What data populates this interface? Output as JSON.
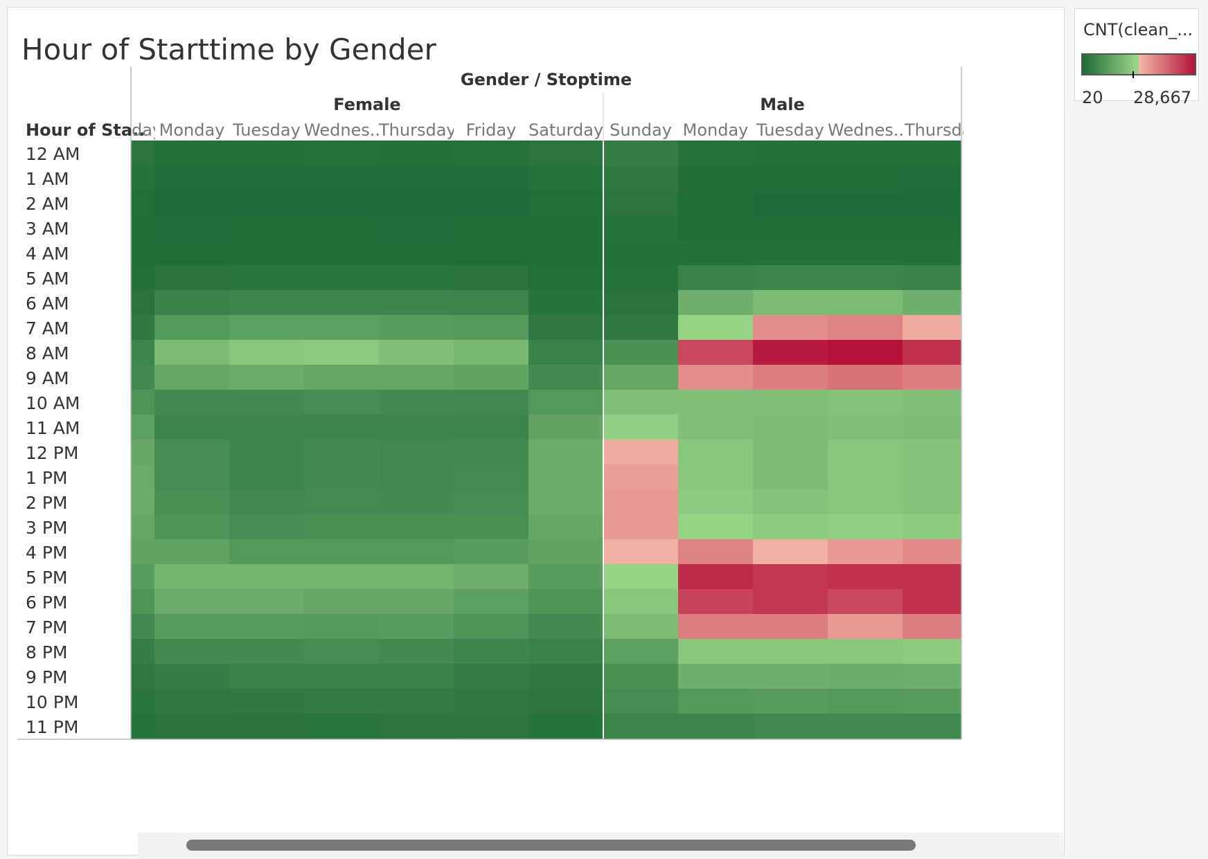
{
  "sheet": {
    "title": "Hour of Starttime by Gender"
  },
  "legend": {
    "title": "CNT(clean_...",
    "min_label": "20",
    "max_label": "28,667"
  },
  "chart_data": {
    "type": "heatmap",
    "title": "Hour of Starttime by Gender",
    "column_header": "Gender / Stoptime",
    "row_header": "Hour of Sta..",
    "genders": [
      "Female",
      "Male"
    ],
    "columns": [
      {
        "gender": "Female",
        "label": "..day"
      },
      {
        "gender": "Female",
        "label": "Monday"
      },
      {
        "gender": "Female",
        "label": "Tuesday"
      },
      {
        "gender": "Female",
        "label": "Wednes.."
      },
      {
        "gender": "Female",
        "label": "Thursday"
      },
      {
        "gender": "Female",
        "label": "Friday"
      },
      {
        "gender": "Female",
        "label": "Saturday"
      },
      {
        "gender": "Male",
        "label": "Sunday"
      },
      {
        "gender": "Male",
        "label": "Monday"
      },
      {
        "gender": "Male",
        "label": "Tuesday"
      },
      {
        "gender": "Male",
        "label": "Wednes.."
      },
      {
        "gender": "Male",
        "label": "Thursda"
      }
    ],
    "rows": [
      "12 AM",
      "1 AM",
      "2 AM",
      "3 AM",
      "4 AM",
      "5 AM",
      "6 AM",
      "7 AM",
      "8 AM",
      "9 AM",
      "10 AM",
      "11 AM",
      "12 PM",
      "1 PM",
      "2 PM",
      "3 PM",
      "4 PM",
      "5 PM",
      "6 PM",
      "7 PM",
      "8 PM",
      "9 PM",
      "10 PM",
      "11 PM"
    ],
    "color_range": [
      20,
      28667
    ],
    "colors": {
      "low": "#1e6b37",
      "mid_low": "#9ed98a",
      "mid_high": "#f2b9a6",
      "high": "#b5123a"
    },
    "values": [
      [
        1500,
        700,
        800,
        900,
        850,
        900,
        1500,
        2500,
        900,
        700,
        700,
        800
      ],
      [
        900,
        300,
        300,
        300,
        300,
        300,
        900,
        2000,
        400,
        350,
        350,
        300
      ],
      [
        600,
        200,
        200,
        200,
        200,
        200,
        600,
        1500,
        250,
        200,
        200,
        200
      ],
      [
        400,
        300,
        250,
        250,
        300,
        250,
        400,
        900,
        250,
        250,
        250,
        250
      ],
      [
        400,
        450,
        450,
        450,
        450,
        450,
        400,
        800,
        800,
        800,
        800,
        800
      ],
      [
        700,
        1200,
        1300,
        1300,
        1300,
        1200,
        600,
        900,
        3000,
        3500,
        3500,
        3000
      ],
      [
        1200,
        3000,
        3500,
        3500,
        3500,
        3300,
        1000,
        1200,
        9000,
        10500,
        10500,
        9000
      ],
      [
        2000,
        6000,
        7000,
        7000,
        6500,
        6000,
        1800,
        2000,
        13500,
        18000,
        19000,
        15500
      ],
      [
        3500,
        10500,
        12000,
        12500,
        11000,
        10000,
        3000,
        5000,
        24000,
        28000,
        28667,
        26000
      ],
      [
        4000,
        8000,
        8500,
        8000,
        8000,
        7500,
        4000,
        8000,
        18000,
        19500,
        20500,
        19500
      ],
      [
        5500,
        4000,
        4000,
        4500,
        4000,
        3800,
        6000,
        11000,
        11000,
        11000,
        11500,
        11000
      ],
      [
        7000,
        3500,
        3500,
        3500,
        3500,
        3500,
        7500,
        13000,
        11000,
        10500,
        11000,
        10500
      ],
      [
        8000,
        4500,
        3500,
        4000,
        3800,
        4000,
        8500,
        15500,
        12000,
        10500,
        12000,
        11500
      ],
      [
        8500,
        4500,
        3500,
        4000,
        3800,
        4200,
        8500,
        16500,
        12000,
        10500,
        12000,
        11500
      ],
      [
        8500,
        4800,
        3800,
        4200,
        4000,
        4500,
        8500,
        17000,
        12500,
        11500,
        12000,
        11500
      ],
      [
        8000,
        5500,
        4500,
        5000,
        4800,
        5000,
        8000,
        17000,
        13500,
        12500,
        13000,
        12500
      ],
      [
        7500,
        7500,
        6000,
        6000,
        6000,
        6500,
        7500,
        15000,
        19000,
        15000,
        17000,
        18500
      ],
      [
        6500,
        9500,
        9500,
        9500,
        9500,
        9000,
        6500,
        13500,
        26500,
        25500,
        26000,
        26000
      ],
      [
        5500,
        8500,
        8500,
        8000,
        8000,
        7000,
        5500,
        12000,
        24500,
        25500,
        24000,
        26000
      ],
      [
        4000,
        6500,
        6500,
        6000,
        6500,
        5500,
        4000,
        10500,
        19500,
        19500,
        17000,
        19500
      ],
      [
        2500,
        4000,
        4000,
        4500,
        4000,
        3500,
        3000,
        7000,
        12000,
        12000,
        12000,
        12500
      ],
      [
        1800,
        2500,
        3000,
        3000,
        3000,
        2500,
        2000,
        5000,
        9000,
        9000,
        8500,
        9000
      ],
      [
        1300,
        1800,
        2000,
        2200,
        2200,
        2000,
        1500,
        4500,
        6000,
        6500,
        6000,
        6500
      ],
      [
        1000,
        1200,
        1200,
        1300,
        1500,
        1700,
        1000,
        3500,
        3500,
        3800,
        3800,
        3800
      ]
    ]
  }
}
